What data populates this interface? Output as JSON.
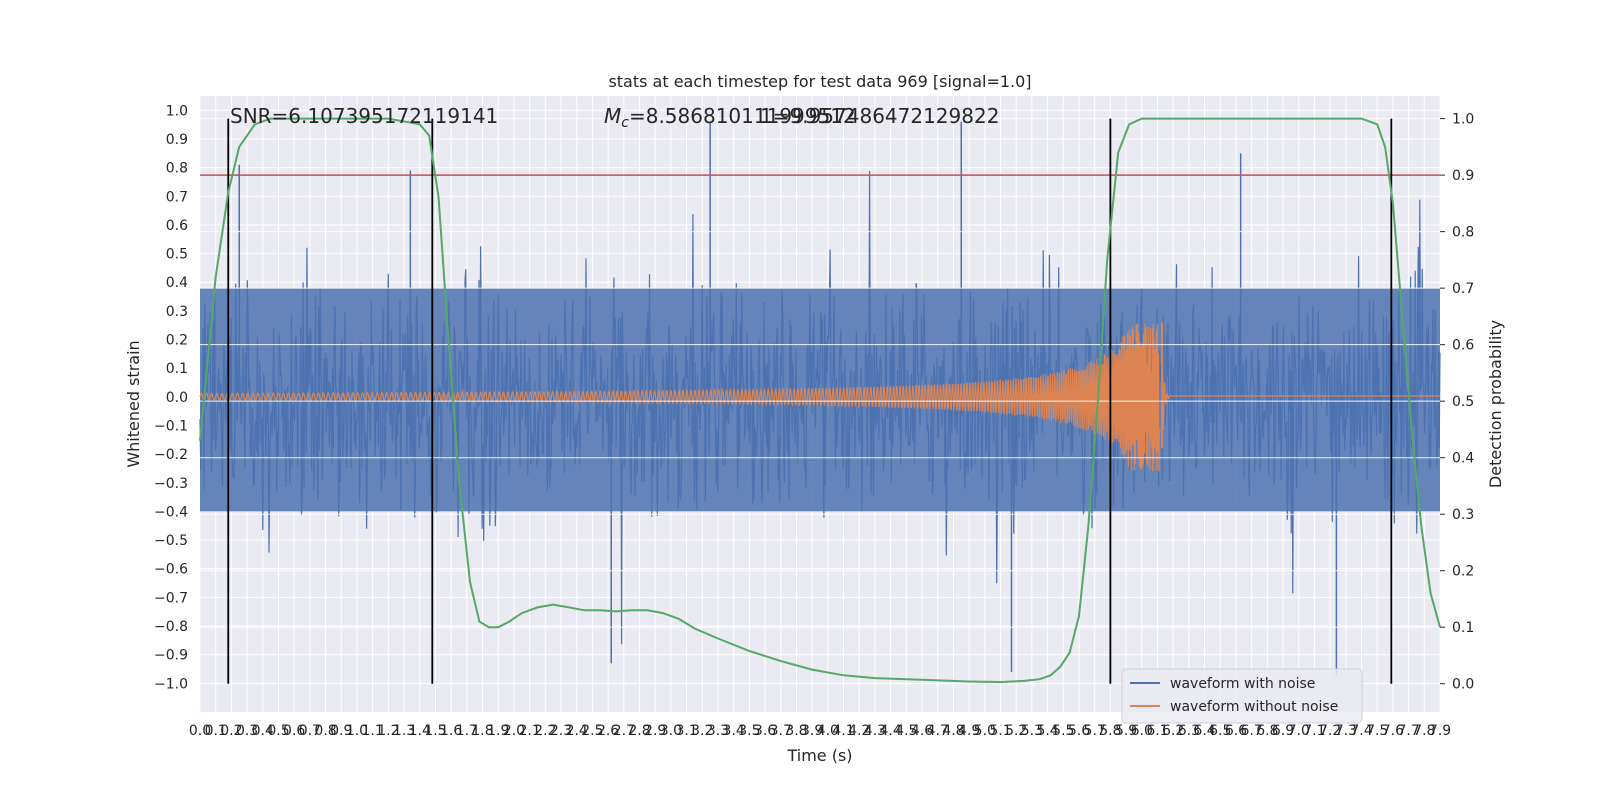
{
  "chart_data": {
    "type": "line",
    "title": "stats at each timestep for test data 969 [signal=1.0]",
    "xlabel": "Time (s)",
    "ylabel": "Whitened strain",
    "ylabel_right": "Detection probability",
    "xlim": [
      0.0,
      7.9
    ],
    "ylim": [
      -1.1,
      1.05
    ],
    "ylim_right": [
      -0.05,
      1.04
    ],
    "x_ticks": [
      "0.0",
      "0.1",
      "0.2",
      "0.3",
      "0.4",
      "0.5",
      "0.6",
      "0.7",
      "0.8",
      "0.9",
      "1.0",
      "1.1",
      "1.2",
      "1.3",
      "1.4",
      "1.5",
      "1.6",
      "1.7",
      "1.8",
      "1.9",
      "2.0",
      "2.1",
      "2.2",
      "2.3",
      "2.4",
      "2.5",
      "2.6",
      "2.7",
      "2.8",
      "2.9",
      "3.0",
      "3.1",
      "3.2",
      "3.3",
      "3.4",
      "3.5",
      "3.6",
      "3.7",
      "3.8",
      "3.9",
      "4.0",
      "4.1",
      "4.2",
      "4.3",
      "4.4",
      "4.5",
      "4.6",
      "4.7",
      "4.8",
      "4.9",
      "5.0",
      "5.1",
      "5.2",
      "5.3",
      "5.4",
      "5.5",
      "5.6",
      "5.7",
      "5.8",
      "5.9",
      "6.0",
      "6.1",
      "6.2",
      "6.3",
      "6.4",
      "6.5",
      "6.6",
      "6.7",
      "6.8",
      "6.9",
      "7.0",
      "7.1",
      "7.2",
      "7.3",
      "7.4",
      "7.5",
      "7.6",
      "7.7",
      "7.8",
      "7.9"
    ],
    "y_ticks": [
      "1.0",
      "0.9",
      "0.8",
      "0.7",
      "0.6",
      "0.5",
      "0.4",
      "0.3",
      "0.2",
      "0.1",
      "0.0",
      "−0.1",
      "−0.2",
      "−0.3",
      "−0.4",
      "−0.5",
      "−0.6",
      "−0.7",
      "−0.8",
      "−0.9",
      "−1.0"
    ],
    "y_ticks_right": [
      "1.0",
      "0.9",
      "0.8",
      "0.7",
      "0.6",
      "0.5",
      "0.4",
      "0.3",
      "0.2",
      "0.1",
      "0.0"
    ],
    "annotations": {
      "snr": "SNR=6.107395172119141",
      "mc_symbol": "M",
      "mc_sub": "c",
      "mc_value": "=8.586810111999512",
      "overlap": "1=9.957486472129822"
    },
    "threshold_right": 0.9,
    "vertical_lines": [
      0.18,
      1.48,
      5.8,
      7.59
    ],
    "series": [
      {
        "name": "waveform with noise",
        "color": "#4c72b0",
        "noise_amplitude": 0.4,
        "peaks": [
          [
            0.25,
            0.81
          ],
          [
            1.34,
            0.79
          ],
          [
            3.25,
            0.96
          ],
          [
            4.85,
            0.96
          ],
          [
            6.63,
            0.85
          ],
          [
            2.62,
            -0.93
          ],
          [
            5.17,
            -0.96
          ],
          [
            7.24,
            -0.97
          ]
        ]
      },
      {
        "name": "waveform without noise",
        "color": "#dd8452",
        "chirp_start": 0.0,
        "merger_time": 6.13,
        "amp_start": 0.012,
        "amp_merger": 0.26,
        "amp_min_merger": -0.18,
        "ringdown_level": 0.003
      },
      {
        "name": "",
        "axis": "right",
        "color": "#55a868",
        "x": [
          0.0,
          0.1,
          0.18,
          0.25,
          0.35,
          0.45,
          0.6,
          0.8,
          1.0,
          1.2,
          1.4,
          1.46,
          1.52,
          1.58,
          1.65,
          1.72,
          1.78,
          1.84,
          1.9,
          1.97,
          2.05,
          2.15,
          2.25,
          2.35,
          2.45,
          2.55,
          2.65,
          2.75,
          2.85,
          2.95,
          3.05,
          3.15,
          3.3,
          3.5,
          3.7,
          3.9,
          4.1,
          4.3,
          4.6,
          4.9,
          5.1,
          5.25,
          5.35,
          5.42,
          5.48,
          5.54,
          5.6,
          5.66,
          5.72,
          5.78,
          5.85,
          5.92,
          6.0,
          6.2,
          6.5,
          7.0,
          7.4,
          7.5,
          7.55,
          7.6,
          7.66,
          7.72,
          7.78,
          7.84,
          7.9
        ],
        "y": [
          0.43,
          0.72,
          0.87,
          0.95,
          0.99,
          1.0,
          1.0,
          1.0,
          1.0,
          1.0,
          0.99,
          0.97,
          0.86,
          0.62,
          0.36,
          0.18,
          0.11,
          0.1,
          0.1,
          0.11,
          0.125,
          0.135,
          0.14,
          0.135,
          0.13,
          0.13,
          0.128,
          0.13,
          0.13,
          0.125,
          0.115,
          0.098,
          0.08,
          0.058,
          0.04,
          0.025,
          0.015,
          0.01,
          0.007,
          0.004,
          0.003,
          0.005,
          0.008,
          0.015,
          0.03,
          0.055,
          0.12,
          0.28,
          0.5,
          0.75,
          0.94,
          0.99,
          1.0,
          1.0,
          1.0,
          1.0,
          1.0,
          0.99,
          0.95,
          0.85,
          0.65,
          0.45,
          0.28,
          0.16,
          0.1
        ]
      }
    ],
    "legend": "lower-right",
    "grid": true
  }
}
